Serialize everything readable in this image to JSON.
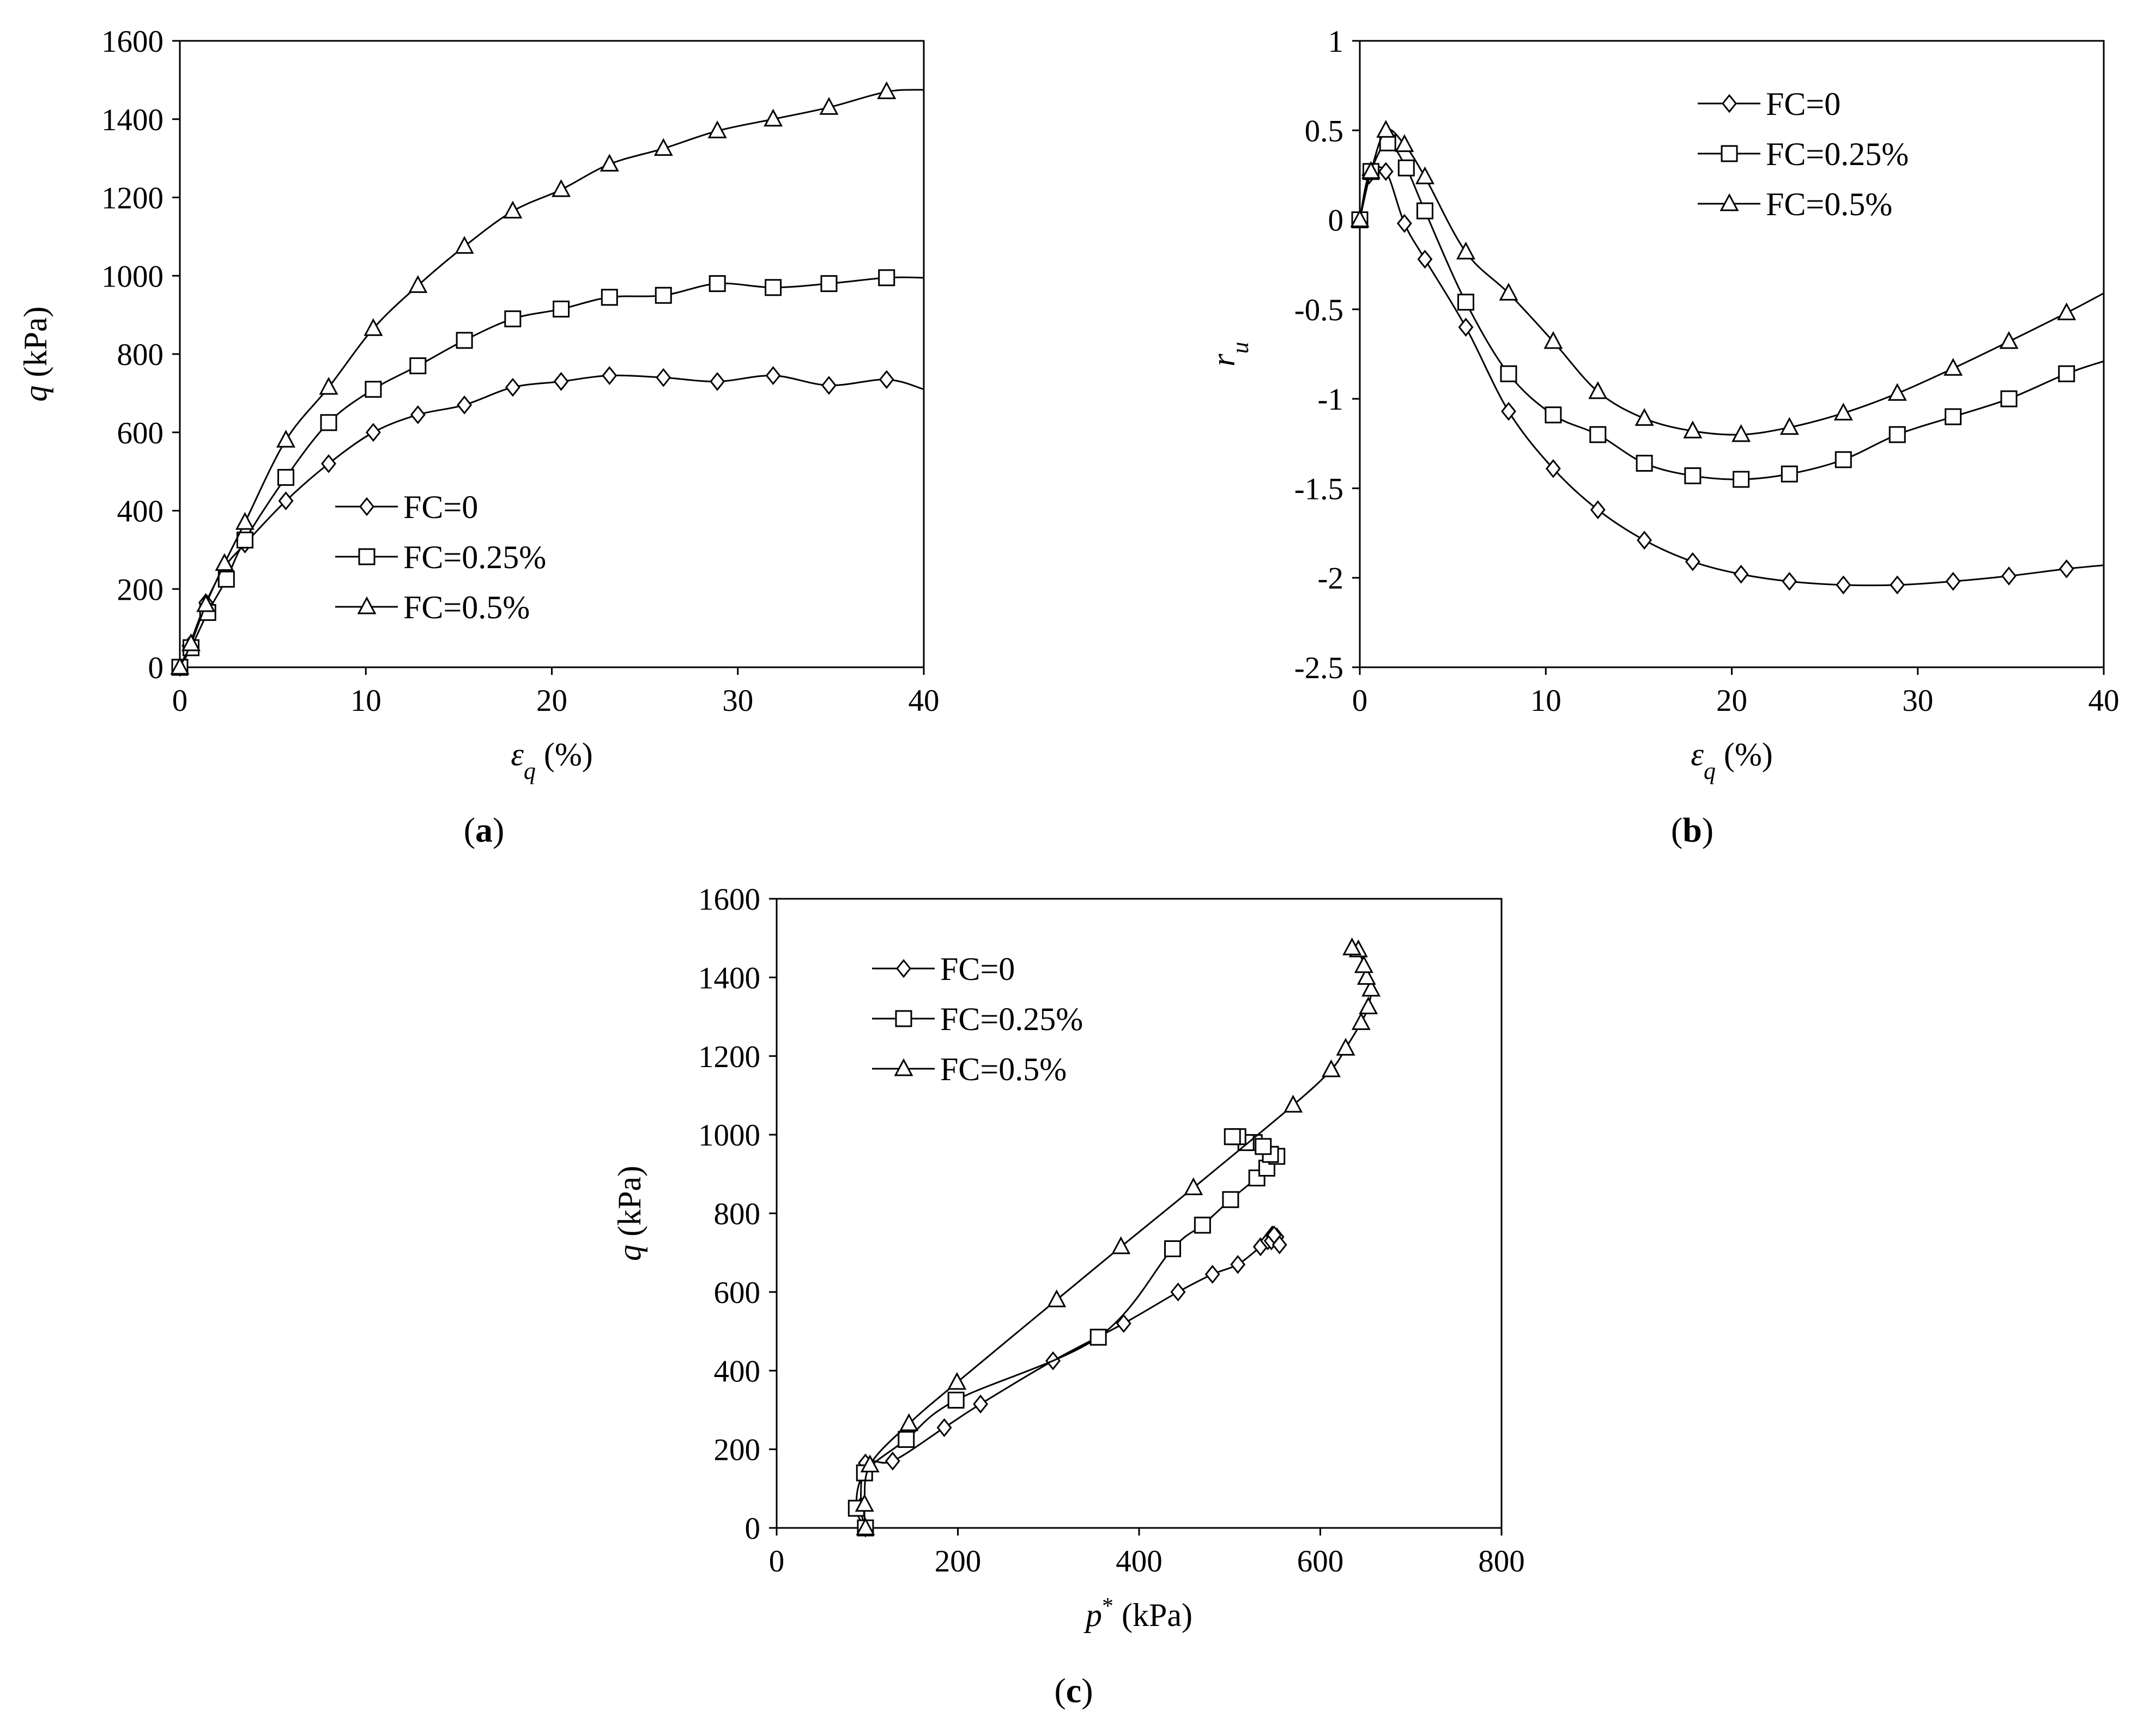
{
  "chart_data": [
    {
      "id": "a",
      "type": "line",
      "panel_label": "a",
      "xlabel": "ε_q (%)",
      "ylabel": "q (kPa)",
      "xlim": [
        0,
        40
      ],
      "ylim": [
        0,
        1600
      ],
      "xticks": [
        0,
        10,
        20,
        30,
        40
      ],
      "yticks": [
        0,
        200,
        400,
        600,
        800,
        1000,
        1200,
        1400,
        1600
      ],
      "legend_position": "bottom-center",
      "series": [
        {
          "name": "FC=0",
          "marker": "diamond",
          "x": [
            0,
            0.5,
            1.4,
            2.4,
            3.5,
            5.7,
            8.0,
            10.4,
            12.8,
            15.3,
            17.9,
            20.5,
            23.1,
            26.0,
            28.9,
            31.9,
            34.9,
            38.0,
            40.0
          ],
          "y": [
            0,
            55,
            165,
            255,
            315,
            425,
            520,
            600,
            645,
            670,
            715,
            730,
            745,
            740,
            730,
            745,
            720,
            735,
            710
          ],
          "marker_count": 18
        },
        {
          "name": "FC=0.25%",
          "marker": "square",
          "x": [
            0,
            0.6,
            1.5,
            2.5,
            3.5,
            5.7,
            8.0,
            10.4,
            12.8,
            15.3,
            17.9,
            20.5,
            23.1,
            26.0,
            28.9,
            31.9,
            34.9,
            38.0,
            40.0
          ],
          "y": [
            0,
            50,
            140,
            225,
            325,
            485,
            625,
            710,
            770,
            835,
            890,
            915,
            945,
            950,
            980,
            970,
            980,
            995,
            995
          ],
          "marker_count": 18
        },
        {
          "name": "FC=0.5%",
          "marker": "triangle",
          "x": [
            0,
            0.6,
            1.4,
            2.4,
            3.5,
            5.7,
            8.0,
            10.4,
            12.8,
            15.3,
            17.9,
            20.5,
            23.1,
            26.0,
            28.9,
            31.9,
            34.9,
            38.0,
            40.0
          ],
          "y": [
            0,
            60,
            160,
            265,
            370,
            580,
            715,
            865,
            975,
            1075,
            1165,
            1220,
            1285,
            1325,
            1370,
            1400,
            1430,
            1470,
            1475
          ],
          "marker_count": 18
        }
      ]
    },
    {
      "id": "b",
      "type": "line",
      "panel_label": "b",
      "xlabel": "ε_q (%)",
      "ylabel": "r_u",
      "xlim": [
        0,
        40
      ],
      "ylim": [
        -2.5,
        1
      ],
      "xticks": [
        0,
        10,
        20,
        30,
        40
      ],
      "yticks": [
        -2.5,
        -2,
        -1.5,
        -1,
        -0.5,
        0,
        0.5,
        1
      ],
      "legend_position": "top-right",
      "series": [
        {
          "name": "FC=0",
          "marker": "diamond",
          "x": [
            0,
            0.5,
            1.4,
            2.4,
            3.5,
            5.7,
            8.0,
            10.4,
            12.8,
            15.3,
            17.9,
            20.5,
            23.1,
            26.0,
            28.9,
            31.9,
            34.9,
            38.0,
            40.0
          ],
          "y": [
            0,
            0.25,
            0.27,
            -0.02,
            -0.22,
            -0.6,
            -1.07,
            -1.39,
            -1.62,
            -1.79,
            -1.91,
            -1.98,
            -2.02,
            -2.04,
            -2.04,
            -2.02,
            -1.99,
            -1.95,
            -1.93
          ],
          "marker_count": 18
        },
        {
          "name": "FC=0.25%",
          "marker": "square",
          "x": [
            0,
            0.6,
            1.5,
            2.5,
            3.5,
            5.7,
            8.0,
            10.4,
            12.8,
            15.3,
            17.9,
            20.5,
            23.1,
            26.0,
            28.9,
            31.9,
            34.9,
            38.0,
            40.0
          ],
          "y": [
            0,
            0.27,
            0.43,
            0.29,
            0.05,
            -0.46,
            -0.86,
            -1.09,
            -1.2,
            -1.36,
            -1.43,
            -1.45,
            -1.42,
            -1.34,
            -1.2,
            -1.1,
            -1.0,
            -0.86,
            -0.79
          ],
          "marker_count": 18
        },
        {
          "name": "FC=0.5%",
          "marker": "triangle",
          "x": [
            0,
            0.6,
            1.4,
            2.4,
            3.5,
            5.7,
            8.0,
            10.4,
            12.8,
            15.3,
            17.9,
            20.5,
            23.1,
            26.0,
            28.9,
            31.9,
            34.9,
            38.0,
            40.0
          ],
          "y": [
            0,
            0.27,
            0.5,
            0.42,
            0.24,
            -0.18,
            -0.41,
            -0.68,
            -0.96,
            -1.11,
            -1.18,
            -1.2,
            -1.16,
            -1.08,
            -0.97,
            -0.83,
            -0.68,
            -0.52,
            -0.41
          ],
          "marker_count": 18
        }
      ]
    },
    {
      "id": "c",
      "type": "line",
      "panel_label": "c",
      "xlabel": "p* (kPa)",
      "ylabel": "q (kPa)",
      "xlim": [
        0,
        800
      ],
      "ylim": [
        0,
        1600
      ],
      "xticks": [
        0,
        200,
        400,
        600,
        800
      ],
      "yticks": [
        0,
        200,
        400,
        600,
        800,
        1000,
        1200,
        1400,
        1600
      ],
      "legend_position": "top-left",
      "series": [
        {
          "name": "FC=0",
          "marker": "diamond",
          "x": [
            98,
            93,
            98,
            128,
            185,
            225,
            305,
            383,
            443,
            481,
            509,
            534,
            542,
            547,
            552,
            546,
            549,
            555
          ],
          "y": [
            0,
            55,
            165,
            170,
            255,
            315,
            425,
            520,
            600,
            645,
            670,
            715,
            730,
            745,
            740,
            730,
            745,
            720
          ],
          "marker_count": 18
        },
        {
          "name": "FC=0.25%",
          "marker": "square",
          "x": [
            98,
            88,
            97,
            143,
            198,
            355,
            437,
            470,
            501,
            530,
            541,
            552,
            545,
            527,
            537,
            518,
            509,
            503
          ],
          "y": [
            0,
            50,
            140,
            225,
            325,
            485,
            710,
            770,
            835,
            890,
            915,
            945,
            950,
            980,
            970,
            980,
            995,
            995
          ],
          "marker_count": 18
        },
        {
          "name": "FC=0.5%",
          "marker": "triangle",
          "x": [
            98,
            97,
            103,
            146,
            199,
            309,
            380,
            460,
            570,
            612,
            628,
            645,
            653,
            656,
            651,
            648,
            642,
            635
          ],
          "y": [
            0,
            60,
            160,
            265,
            370,
            580,
            715,
            865,
            1075,
            1165,
            1220,
            1285,
            1325,
            1370,
            1400,
            1430,
            1470,
            1475
          ],
          "marker_count": 18
        }
      ]
    }
  ]
}
